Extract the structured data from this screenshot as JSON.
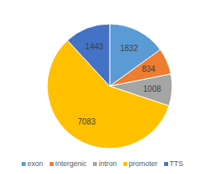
{
  "chart_data": {
    "type": "pie",
    "categories": [
      "exon",
      "Intergenic",
      "intron",
      "promoter",
      "TTS"
    ],
    "values": [
      1832,
      834,
      1008,
      7083,
      1443
    ],
    "colors": [
      "#5b9bd5",
      "#ed7d31",
      "#a5a5a5",
      "#ffc000",
      "#4472c4"
    ],
    "data_labels": true,
    "legend": "bottom"
  }
}
